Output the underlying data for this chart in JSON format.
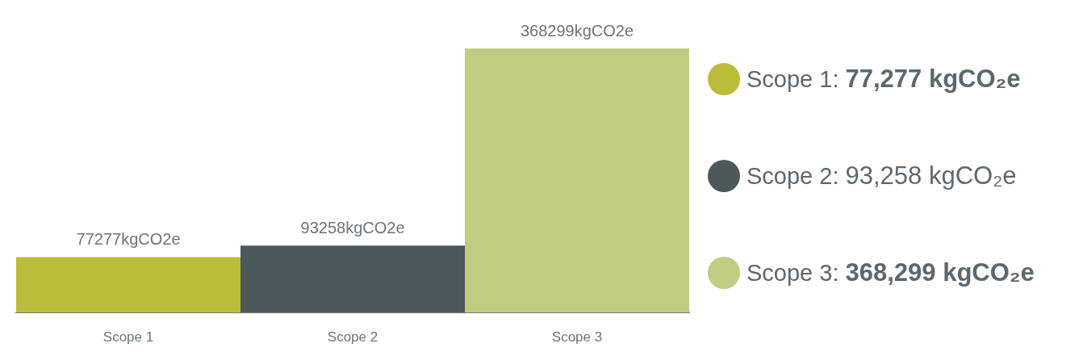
{
  "chart_data": {
    "type": "bar",
    "categories": [
      "Scope 1",
      "Scope 2",
      "Scope 3"
    ],
    "values": [
      77277,
      93258,
      368299
    ],
    "colors": [
      "#bbbd3a",
      "#4d585b",
      "#c0cc82"
    ],
    "value_labels": [
      "77277kgCO2e",
      "93258kgCO2e",
      "368299kgCO2e"
    ],
    "annotations": [
      "Scope 1: 77,277 kgCO₂e",
      "Scope 2: 93,258 kgCO₂e",
      "Scope 3: 368,299 kgCO₂e"
    ]
  }
}
